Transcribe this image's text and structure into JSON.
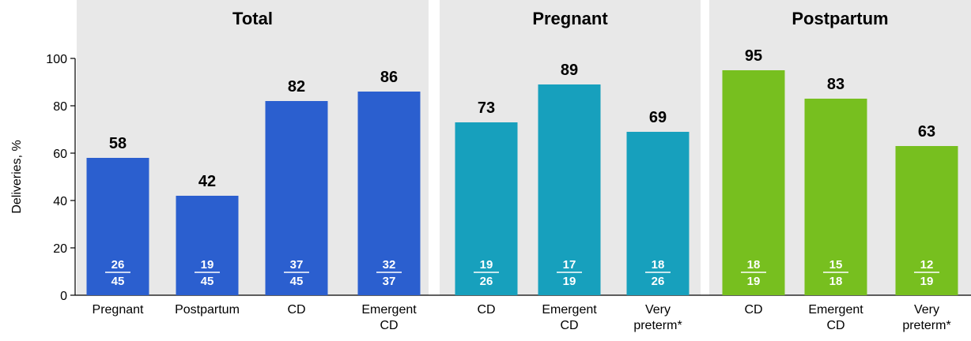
{
  "chart_data": {
    "type": "bar",
    "ylabel": "Deliveries, %",
    "ylim": [
      0,
      100
    ],
    "yticks": [
      0,
      20,
      40,
      60,
      80,
      100
    ],
    "grid": false,
    "panels": [
      {
        "title": "Total",
        "color": "#2b5fcf",
        "bars": [
          {
            "category": [
              "Pregnant"
            ],
            "value": 58,
            "num": "26",
            "den": "45"
          },
          {
            "category": [
              "Postpartum"
            ],
            "value": 42,
            "num": "19",
            "den": "45"
          },
          {
            "category": [
              "CD"
            ],
            "value": 82,
            "num": "37",
            "den": "45"
          },
          {
            "category": [
              "Emergent",
              "CD"
            ],
            "value": 86,
            "num": "32",
            "den": "37"
          }
        ]
      },
      {
        "title": "Pregnant",
        "color": "#17a0bd",
        "bars": [
          {
            "category": [
              "CD"
            ],
            "value": 73,
            "num": "19",
            "den": "26"
          },
          {
            "category": [
              "Emergent",
              "CD"
            ],
            "value": 89,
            "num": "17",
            "den": "19"
          },
          {
            "category": [
              "Very",
              "preterm*"
            ],
            "value": 69,
            "num": "18",
            "den": "26"
          }
        ]
      },
      {
        "title": "Postpartum",
        "color": "#77bf1f",
        "bars": [
          {
            "category": [
              "CD"
            ],
            "value": 95,
            "num": "18",
            "den": "19"
          },
          {
            "category": [
              "Emergent",
              "CD"
            ],
            "value": 83,
            "num": "15",
            "den": "18"
          },
          {
            "category": [
              "Very",
              "preterm*"
            ],
            "value": 63,
            "num": "12",
            "den": "19"
          }
        ]
      }
    ]
  }
}
